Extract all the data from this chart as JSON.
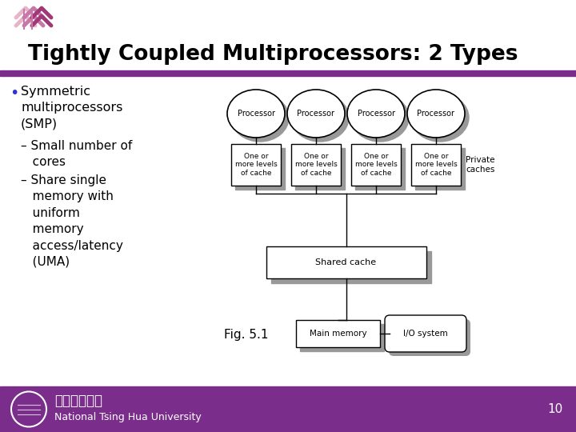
{
  "title": "Tightly Coupled Multiprocessors: 2 Types",
  "purple_bar_color": "#7B2D8B",
  "bullet_color": "#3333CC",
  "bullet_text": "Symmetric\nmultiprocessors\n(SMP)",
  "sub_bullet1": "– Small number of\n   cores",
  "sub_bullet2": "– Share single\n   memory with\n   uniform\n   memory\n   access/latency\n   (UMA)",
  "fig_label": "Fig. 5.1",
  "processor_label": "Processor",
  "cache_label": "One or\nmore levels\nof cache",
  "private_caches_label": "Private\ncaches",
  "shared_cache_label": "Shared cache",
  "main_memory_label": "Main memory",
  "io_system_label": "I/O system",
  "footer_text": "National Tsing Hua University",
  "footer_chinese": "國立清華大學",
  "page_number": "10",
  "bg_color": "#ffffff",
  "shadow_color": "#999999"
}
